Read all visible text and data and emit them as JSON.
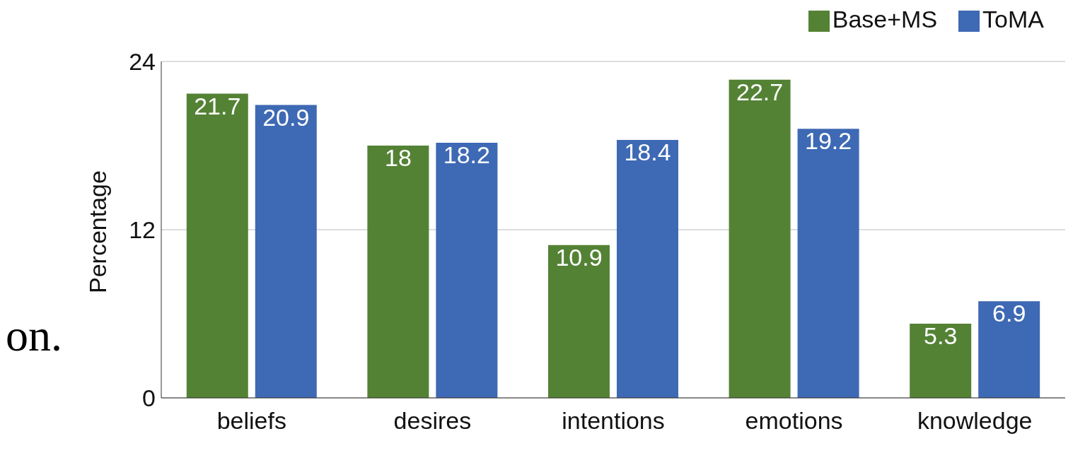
{
  "chart_data": {
    "type": "bar",
    "ylabel": "Percentage",
    "categories": [
      "beliefs",
      "desires",
      "intentions",
      "emotions",
      "knowledge"
    ],
    "series": [
      {
        "name": "Base+MS",
        "color": "#548235",
        "values": [
          21.7,
          18,
          10.9,
          22.7,
          5.3
        ]
      },
      {
        "name": "ToMA",
        "color": "#3e69b4",
        "values": [
          20.9,
          18.2,
          18.4,
          19.2,
          6.9
        ]
      }
    ],
    "ylim": [
      0,
      24
    ],
    "yticks": [
      0,
      12,
      24
    ],
    "grid": "y",
    "legend": "top right",
    "data_labels": true,
    "annotations": [
      "on."
    ]
  }
}
